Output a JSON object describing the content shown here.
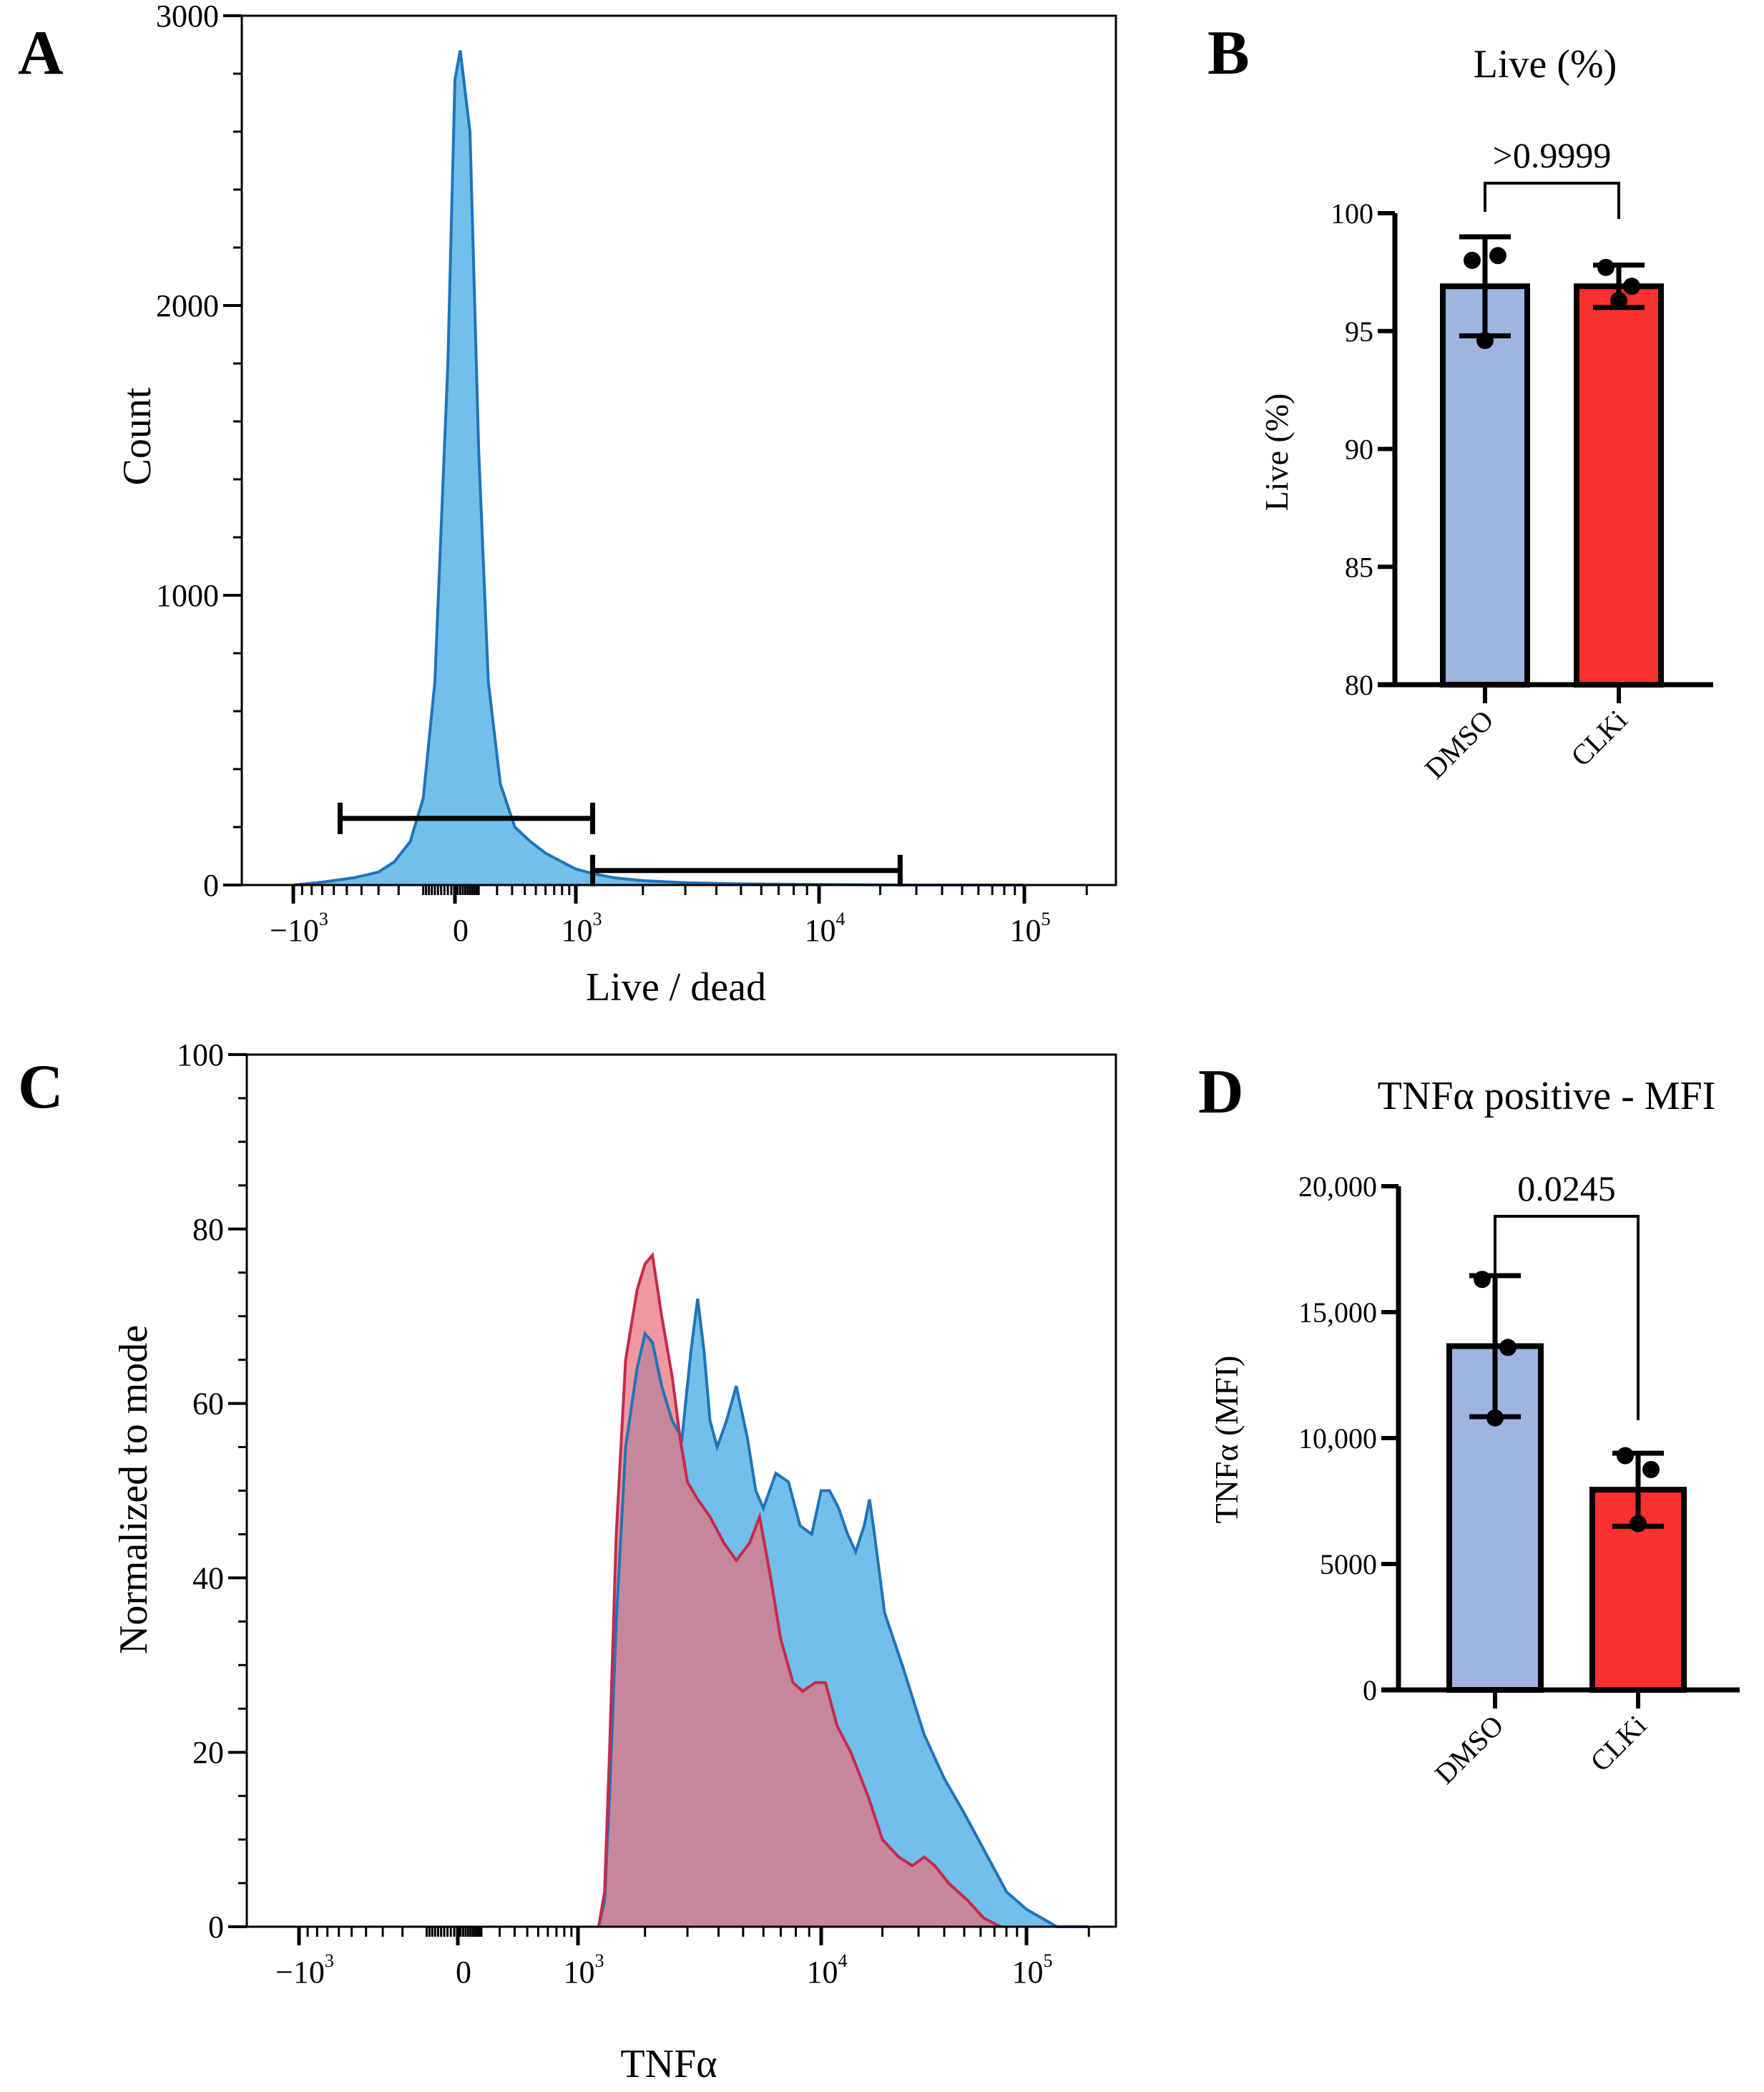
{
  "panels": {
    "A": "A",
    "B": "B",
    "C": "C",
    "D": "D"
  },
  "colors": {
    "histogram_blue_fill": "#72bfe9",
    "histogram_blue_line": "#1f74b8",
    "histogram_red_fill": "#e9707c",
    "histogram_red_line": "#c42a4c",
    "overlap_purple": "#9b8fc4",
    "bar_dmso": "#9fb4e0",
    "bar_clki": "#fb3230"
  },
  "chart_data": [
    {
      "panel": "A",
      "type": "area",
      "title": "",
      "xlabel": "Live / dead",
      "ylabel": "Count",
      "x_scale": "biexponential",
      "x_tick_labels": [
        {
          "base": "−10",
          "exp": "3",
          "value": -1000
        },
        {
          "base": "0",
          "exp": "",
          "value": 0
        },
        {
          "base": "10",
          "exp": "3",
          "value": 1000
        },
        {
          "base": "10",
          "exp": "4",
          "value": 10000
        },
        {
          "base": "10",
          "exp": "5",
          "value": 100000
        }
      ],
      "y_ticks": [
        0,
        1000,
        2000,
        3000
      ],
      "y_tick_labels": [
        "0",
        "1000",
        "2000",
        "3000"
      ],
      "ylim": [
        0,
        3000
      ],
      "series": [
        {
          "name": "Live / dead",
          "x": [
            -1000,
            -700,
            -450,
            -300,
            -220,
            -150,
            -100,
            -60,
            -20,
            0,
            20,
            60,
            100,
            150,
            220,
            320,
            450,
            600,
            800,
            1000,
            1200,
            1500,
            2000,
            3000,
            5000,
            10000,
            30000,
            100000
          ],
          "y": [
            0,
            10,
            25,
            45,
            80,
            150,
            300,
            700,
            1800,
            2780,
            2880,
            2600,
            1500,
            700,
            350,
            200,
            150,
            110,
            80,
            55,
            40,
            25,
            15,
            8,
            4,
            2,
            0,
            0
          ]
        }
      ],
      "gates": [
        {
          "x_start": -550,
          "x_end": 1200,
          "y": 230
        },
        {
          "x_start": 1200,
          "x_end": 25000,
          "y": 50
        }
      ]
    },
    {
      "panel": "B",
      "type": "bar",
      "title": "Live (%)",
      "xlabel": "",
      "ylabel": "Live (%)",
      "categories": [
        "DMSO",
        "CLKi"
      ],
      "values": [
        96.9,
        96.9
      ],
      "errors": [
        2.1,
        0.9
      ],
      "points": [
        [
          98.0,
          98.2,
          94.6
        ],
        [
          97.7,
          96.9,
          96.3
        ]
      ],
      "y_ticks": [
        80,
        85,
        90,
        95,
        100
      ],
      "y_tick_labels": [
        "80",
        "85",
        "90",
        "95",
        "100"
      ],
      "ylim": [
        80,
        100
      ],
      "comparison": {
        "from": "DMSO",
        "to": "CLKi",
        "label": ">0.9999"
      }
    },
    {
      "panel": "C",
      "type": "area",
      "title": "",
      "xlabel": "TNFα",
      "ylabel": "Normalized to mode",
      "x_scale": "biexponential",
      "x_tick_labels": [
        {
          "base": "−10",
          "exp": "3",
          "value": -1000
        },
        {
          "base": "0",
          "exp": "",
          "value": 0
        },
        {
          "base": "10",
          "exp": "3",
          "value": 1000
        },
        {
          "base": "10",
          "exp": "4",
          "value": 10000
        },
        {
          "base": "10",
          "exp": "5",
          "value": 100000
        }
      ],
      "y_ticks": [
        0,
        20,
        40,
        60,
        80,
        100
      ],
      "y_tick_labels": [
        "0",
        "20",
        "40",
        "60",
        "80",
        "100"
      ],
      "ylim": [
        0,
        100
      ],
      "series": [
        {
          "name": "DMSO",
          "x": [
            1250,
            1330,
            1400,
            1500,
            1650,
            1850,
            2000,
            2150,
            2350,
            2600,
            2850,
            3100,
            3300,
            3500,
            3700,
            3950,
            4300,
            4700,
            5200,
            5600,
            6000,
            6700,
            7500,
            8300,
            9200,
            10000,
            11000,
            12200,
            13500,
            14800,
            16300,
            17300,
            18300,
            20500,
            25000,
            32000,
            40000,
            50000,
            65000,
            80000,
            100000,
            140000,
            200000
          ],
          "y": [
            0,
            3,
            15,
            35,
            55,
            64,
            68,
            67,
            62,
            58,
            56,
            66,
            72,
            66,
            58,
            55,
            58,
            62,
            56,
            50,
            48,
            52,
            51,
            46,
            45,
            50,
            50,
            48,
            45,
            43,
            46,
            49,
            45,
            36,
            30,
            22,
            17,
            13,
            8,
            4,
            2,
            0,
            0
          ]
        },
        {
          "name": "CLKi",
          "x": [
            1250,
            1330,
            1400,
            1500,
            1650,
            1850,
            2000,
            2150,
            2350,
            2600,
            2800,
            3000,
            3300,
            3700,
            4200,
            4700,
            5300,
            5800,
            6400,
            7000,
            7800,
            8500,
            9500,
            10500,
            12000,
            14000,
            17000,
            20000,
            24000,
            28000,
            32000,
            36000,
            42000,
            52000,
            62000,
            75000
          ],
          "y": [
            0,
            4,
            20,
            45,
            65,
            73,
            76,
            77,
            70,
            63,
            56,
            51,
            49,
            47,
            44,
            42,
            44,
            47,
            40,
            33,
            28,
            27,
            28,
            28,
            23,
            20,
            15,
            10,
            8,
            7,
            8,
            7,
            5,
            3,
            1,
            0
          ]
        }
      ]
    },
    {
      "panel": "D",
      "type": "bar",
      "title": "TNFα positive - MFI",
      "xlabel": "",
      "ylabel": "TNFα (MFI)",
      "categories": [
        "DMSO",
        "CLKi"
      ],
      "values": [
        13650,
        7950
      ],
      "errors": [
        2800,
        1450
      ],
      "points": [
        [
          16300,
          13600,
          10800
        ],
        [
          9300,
          8750,
          6600
        ]
      ],
      "y_ticks": [
        0,
        5000,
        10000,
        15000,
        20000
      ],
      "y_tick_labels": [
        "0",
        "5000",
        "10,000",
        "15,000",
        "20,000"
      ],
      "ylim": [
        0,
        20000
      ],
      "comparison": {
        "from": "DMSO",
        "to": "CLKi",
        "label": "0.0245"
      }
    }
  ]
}
